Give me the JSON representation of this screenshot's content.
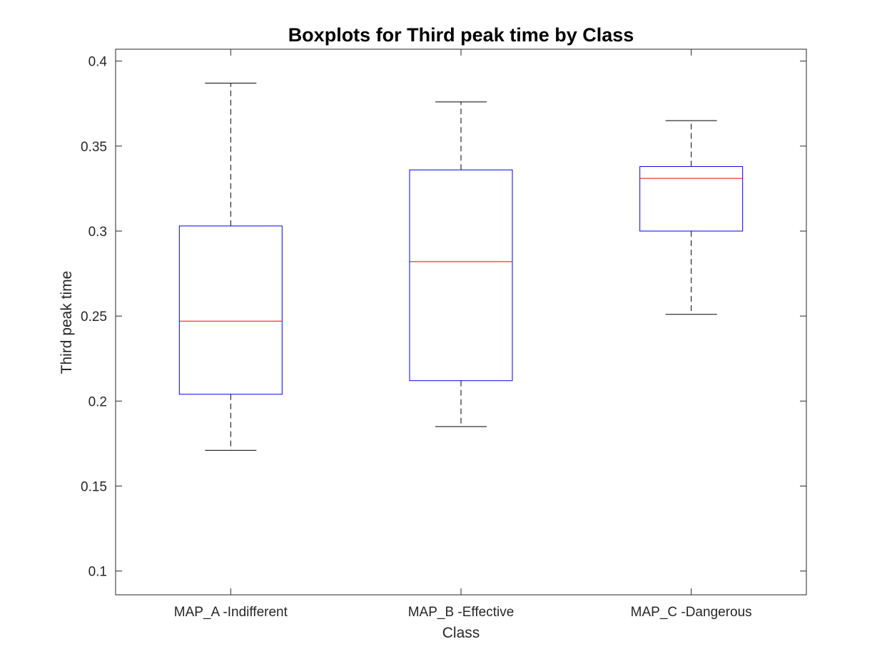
{
  "chart_data": {
    "type": "boxplot",
    "title": "Boxplots for Third peak time by Class",
    "xlabel": "Class",
    "ylabel": "Third peak time",
    "ylim": [
      0.086,
      0.407
    ],
    "yticks": [
      0.1,
      0.15,
      0.2,
      0.25,
      0.3,
      0.35,
      0.4
    ],
    "ytick_labels": [
      "0.1",
      "0.15",
      "0.2",
      "0.25",
      "0.3",
      "0.35",
      "0.4"
    ],
    "categories": [
      "MAP_A -Indifferent",
      "MAP_B -Effective",
      "MAP_C -Dangerous"
    ],
    "boxes": [
      {
        "whisker_low": 0.171,
        "q1": 0.204,
        "median": 0.247,
        "q3": 0.303,
        "whisker_high": 0.387
      },
      {
        "whisker_low": 0.185,
        "q1": 0.212,
        "median": 0.282,
        "q3": 0.336,
        "whisker_high": 0.376
      },
      {
        "whisker_low": 0.251,
        "q1": 0.3,
        "median": 0.331,
        "q3": 0.338,
        "whisker_high": 0.365
      }
    ],
    "grid": false,
    "colors": {
      "box": "#0000ff",
      "median": "#ff0000",
      "whisker": "#000000",
      "axis": "#262626"
    }
  }
}
